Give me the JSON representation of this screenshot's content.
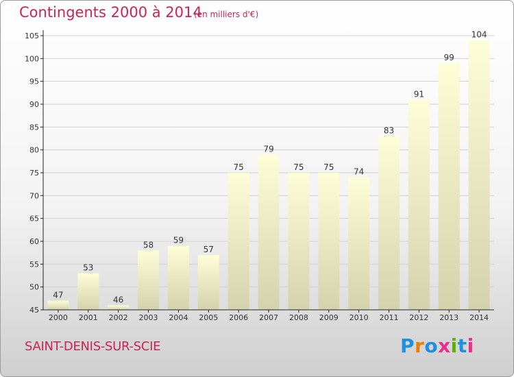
{
  "header": {
    "title": "Contingents 2000 à 2014",
    "subtitle": "(en milliers d'€)"
  },
  "footer": {
    "town": "SAINT-DENIS-SUR-SCIE",
    "logo": {
      "text": "Proxiti",
      "letter_colors": [
        "#1f8fe0",
        "#f07c00",
        "#1f8fe0",
        "#e8308a",
        "#5cb000",
        "#1f8fe0",
        "#e8308a"
      ]
    }
  },
  "colors": {
    "title": "#cc2255",
    "bar_top": "#fdfdd8",
    "bar_bottom": "#d4d2ac",
    "axis": "#222222",
    "grid": "#d0d0d0",
    "background_bottom": "#cfcfcf"
  },
  "chart_data": {
    "type": "bar",
    "title": "Contingents 2000 à 2014",
    "subtitle": "(en milliers d'€)",
    "categories": [
      "2000",
      "2001",
      "2002",
      "2003",
      "2004",
      "2005",
      "2006",
      "2007",
      "2008",
      "2009",
      "2010",
      "2011",
      "2012",
      "2013",
      "2014"
    ],
    "values": [
      47,
      53,
      46,
      58,
      59,
      57,
      75,
      79,
      75,
      75,
      74,
      83,
      91,
      99,
      104
    ],
    "ylim": [
      45,
      105
    ],
    "yticks": [
      45,
      50,
      55,
      60,
      65,
      70,
      75,
      80,
      85,
      90,
      95,
      100,
      105
    ],
    "grid": true,
    "data_labels": true
  }
}
